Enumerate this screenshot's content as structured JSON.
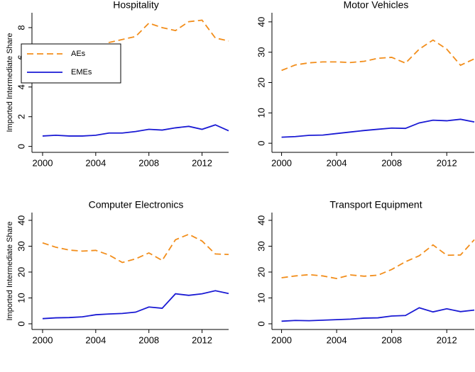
{
  "chart_data": [
    {
      "type": "line",
      "title": "Hospitality",
      "y_label": "Imported Intermediate Share",
      "x": [
        2000,
        2001,
        2002,
        2003,
        2004,
        2005,
        2006,
        2007,
        2008,
        2009,
        2010,
        2011,
        2012,
        2013,
        2014
      ],
      "series": [
        {
          "name": "AEs",
          "color": "#f28e1c",
          "style": "dashed",
          "values": [
            6.0,
            6.3,
            6.3,
            6.4,
            6.4,
            7.0,
            7.2,
            7.4,
            8.3,
            8.0,
            7.8,
            8.4,
            8.5,
            7.3,
            7.1
          ]
        },
        {
          "name": "EMEs",
          "color": "#1a1ad4",
          "style": "solid",
          "values": [
            0.7,
            0.75,
            0.7,
            0.7,
            0.75,
            0.9,
            0.9,
            1.0,
            1.15,
            1.1,
            1.25,
            1.35,
            1.15,
            1.45,
            1.05
          ]
        }
      ],
      "xlim": [
        1999.2,
        2014
      ],
      "xticks": [
        2000,
        2004,
        2008,
        2012
      ],
      "ylim": [
        -0.4,
        9
      ],
      "yticks": [
        0,
        2,
        4,
        6,
        8
      ],
      "legend": "upper left"
    },
    {
      "type": "line",
      "title": "Motor Vehicles",
      "x": [
        2000,
        2001,
        2002,
        2003,
        2004,
        2005,
        2006,
        2007,
        2008,
        2009,
        2010,
        2011,
        2012,
        2013,
        2014
      ],
      "series": [
        {
          "color": "#f28e1c",
          "style": "dashed",
          "values": [
            24,
            25.8,
            26.5,
            26.8,
            26.8,
            26.6,
            27,
            28,
            28.3,
            26.4,
            31,
            34,
            31,
            25.7,
            27.8
          ]
        },
        {
          "color": "#1a1ad4",
          "style": "solid",
          "values": [
            2,
            2.2,
            2.6,
            2.7,
            3.2,
            3.7,
            4.2,
            4.6,
            5,
            4.9,
            6.7,
            7.6,
            7.4,
            7.9,
            7.0
          ]
        }
      ],
      "xlim": [
        1999.3,
        2014
      ],
      "xticks": [
        2000,
        2004,
        2008,
        2012
      ],
      "ylim": [
        -3,
        43
      ],
      "yticks": [
        0,
        10,
        20,
        30,
        40
      ]
    },
    {
      "type": "line",
      "title": "Computer Electronics",
      "y_label": "Imported Intermediate Share",
      "x": [
        2000,
        2001,
        2002,
        2003,
        2004,
        2005,
        2006,
        2007,
        2008,
        2009,
        2010,
        2011,
        2012,
        2013,
        2014
      ],
      "series": [
        {
          "color": "#f28e1c",
          "style": "dashed",
          "values": [
            31.3,
            29.6,
            28.5,
            28.1,
            28.4,
            26.6,
            23.7,
            25.1,
            27.4,
            24.5,
            32.5,
            34.6,
            32,
            27,
            26.8
          ]
        },
        {
          "color": "#1a1ad4",
          "style": "solid",
          "values": [
            2,
            2.3,
            2.4,
            2.7,
            3.5,
            3.8,
            4,
            4.5,
            6.5,
            6,
            11.6,
            11,
            11.6,
            12.8,
            11.7
          ]
        }
      ],
      "xlim": [
        1999.2,
        2014
      ],
      "xticks": [
        2000,
        2004,
        2008,
        2012
      ],
      "ylim": [
        -2.2,
        43
      ],
      "yticks": [
        0,
        10,
        20,
        30,
        40
      ]
    },
    {
      "type": "line",
      "title": "Transport Equipment",
      "x": [
        2000,
        2001,
        2002,
        2003,
        2004,
        2005,
        2006,
        2007,
        2008,
        2009,
        2010,
        2011,
        2012,
        2013,
        2014
      ],
      "series": [
        {
          "color": "#f28e1c",
          "style": "dashed",
          "values": [
            17.8,
            18.5,
            19,
            18.5,
            17.5,
            18.9,
            18.4,
            18.8,
            21,
            24,
            26.3,
            30.5,
            26.5,
            26.6,
            32.5
          ]
        },
        {
          "color": "#1a1ad4",
          "style": "solid",
          "values": [
            1.0,
            1.3,
            1.2,
            1.4,
            1.6,
            1.8,
            2.2,
            2.3,
            3,
            3.2,
            6.2,
            4.6,
            5.8,
            4.7,
            5.3
          ]
        }
      ],
      "xlim": [
        1999.3,
        2014
      ],
      "xticks": [
        2000,
        2004,
        2008,
        2012
      ],
      "ylim": [
        -2.2,
        43
      ],
      "yticks": [
        0,
        10,
        20,
        30,
        40
      ]
    }
  ]
}
